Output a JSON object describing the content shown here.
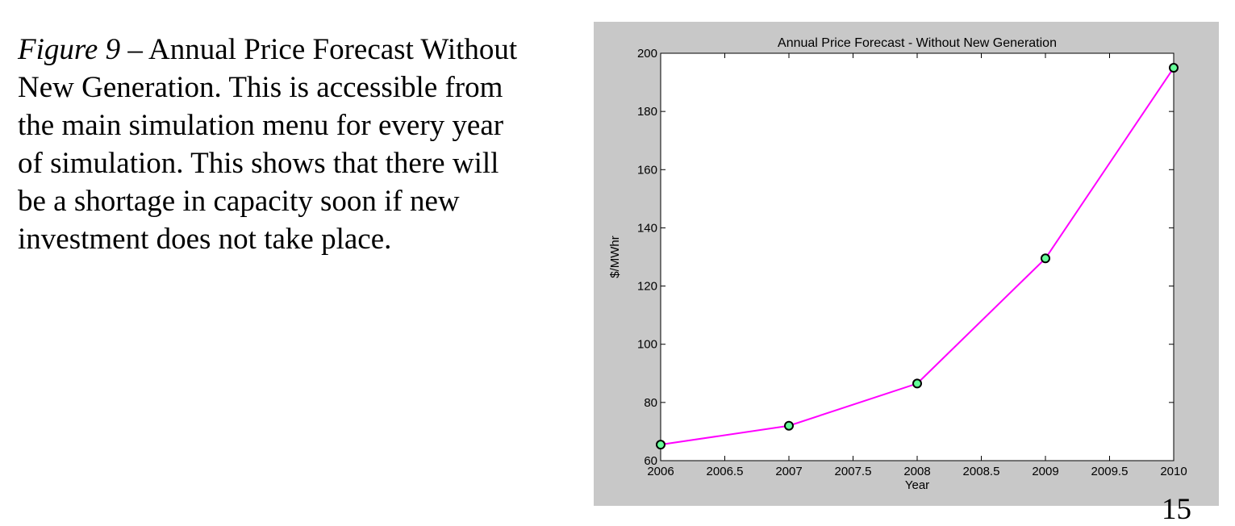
{
  "caption": {
    "figure_label": "Figure 9",
    "text": " – Annual Price Forecast Without New Generation. This is accessible from the main simulation menu for every year of simulation. This shows that there will be a shortage in capacity soon if new investment does not take place."
  },
  "page_number": "15",
  "chart_data": {
    "type": "line",
    "title": "Annual Price Forecast - Without New Generation",
    "xlabel": "Year",
    "ylabel": "$/MWhr",
    "xlim": [
      2006,
      2010
    ],
    "ylim": [
      60,
      200
    ],
    "x_ticks": [
      "2006",
      "2006.5",
      "2007",
      "2007.5",
      "2008",
      "2008.5",
      "2009",
      "2009.5",
      "2010"
    ],
    "y_ticks": [
      "60",
      "80",
      "100",
      "120",
      "140",
      "160",
      "180",
      "200"
    ],
    "grid": false,
    "series": [
      {
        "x": [
          2006,
          2007,
          2008,
          2009,
          2010
        ],
        "y": [
          65.5,
          72,
          86.5,
          129.5,
          195
        ],
        "line_color": "#ff00ff",
        "marker": "circle",
        "marker_fill": "#66ff99",
        "marker_edge": "#000000"
      }
    ]
  }
}
